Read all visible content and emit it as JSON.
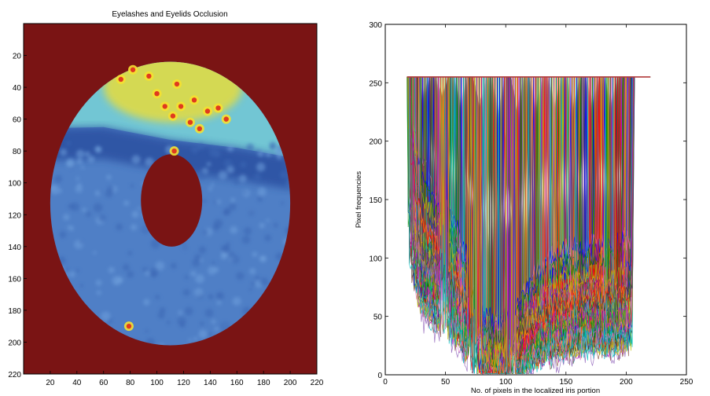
{
  "chart_data": [
    {
      "type": "heatmap",
      "title": "Eyelashes and Eyelids Occlusion",
      "xlabel": "",
      "ylabel": "",
      "xlim": [
        0,
        220
      ],
      "ylim": [
        0,
        220
      ],
      "x_ticks": [
        20,
        40,
        60,
        80,
        100,
        120,
        140,
        160,
        180,
        200,
        220
      ],
      "y_ticks": [
        20,
        40,
        60,
        80,
        100,
        120,
        140,
        160,
        180,
        200,
        220
      ],
      "y_axis_reversed": true,
      "colormap": "jet",
      "colors": {
        "background": "#7a1414",
        "upper_region": "#72c6d4",
        "eyelid_band": "#e6dc3c",
        "iris_lower": "#4f7fc6",
        "iris_dark_band": "#2b4fa0",
        "hotspot": "#e03a1e"
      },
      "outer_boundary": {
        "cx": 110,
        "cy": 113,
        "rx": 90,
        "ry": 89
      },
      "pupil": {
        "cx": 111,
        "cy": 111,
        "rx": 23,
        "ry": 29
      },
      "eyelid_boundary_y": [
        [
          2,
          66
        ],
        [
          60,
          65
        ],
        [
          110,
          73
        ],
        [
          160,
          78
        ],
        [
          200,
          84
        ]
      ],
      "hotspots": [
        [
          73,
          35
        ],
        [
          82,
          29
        ],
        [
          94,
          33
        ],
        [
          100,
          44
        ],
        [
          115,
          38
        ],
        [
          118,
          52
        ],
        [
          128,
          48
        ],
        [
          138,
          55
        ],
        [
          106,
          52
        ],
        [
          112,
          58
        ],
        [
          125,
          62
        ],
        [
          146,
          53
        ],
        [
          152,
          60
        ],
        [
          132,
          66
        ],
        [
          113,
          80
        ],
        [
          79,
          190
        ]
      ]
    },
    {
      "type": "line",
      "title": "",
      "xlabel": "No. of pixels in the localized iris portion",
      "ylabel": "Pixel frequencies",
      "xlim": [
        0,
        250
      ],
      "ylim": [
        0,
        300
      ],
      "x_ticks": [
        0,
        50,
        100,
        150,
        200,
        250
      ],
      "y_ticks": [
        0,
        50,
        100,
        150,
        200,
        250,
        300
      ],
      "grid": false,
      "legend": "none",
      "series_count": 200,
      "saturation_level": 255,
      "curve_x_range": [
        18,
        220
      ],
      "profile": {
        "x": [
          20,
          30,
          40,
          50,
          60,
          70,
          80,
          90,
          100,
          110,
          120,
          130,
          140,
          150,
          160,
          170,
          180,
          190,
          200
        ],
        "y": [
          170,
          120,
          105,
          95,
          80,
          55,
          25,
          15,
          20,
          30,
          45,
          55,
          62,
          65,
          68,
          70,
          70,
          70,
          72
        ],
        "spread": 55
      },
      "gaps": [
        [
          46,
          52
        ],
        [
          69,
          79
        ],
        [
          100,
          108
        ]
      ],
      "palette": [
        "#0000ff",
        "#008000",
        "#ff0000",
        "#00bfbf",
        "#bf00bf",
        "#bfbf00",
        "#3f3f3f",
        "#ff7f0e",
        "#2ca02c",
        "#9467bd",
        "#8c564b",
        "#e377c2"
      ]
    }
  ]
}
